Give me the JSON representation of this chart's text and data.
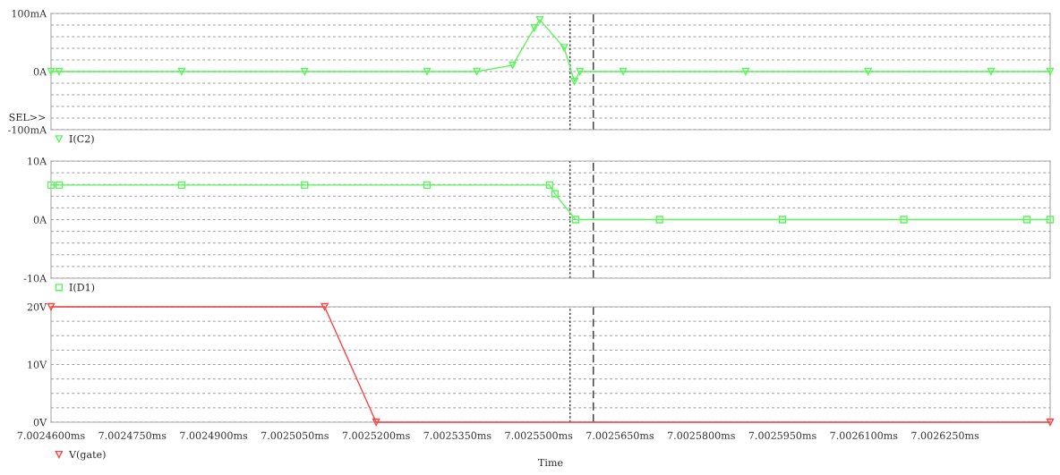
{
  "chart_data": [
    {
      "type": "line",
      "xlim": [
        7.00246,
        7.0026444
      ],
      "ylim": [
        -100,
        100
      ],
      "yticks": [
        {
          "value": -100,
          "label": "-100mA"
        },
        {
          "value": -80,
          "label": null
        },
        {
          "value": -60,
          "label": null
        },
        {
          "value": -40,
          "label": null
        },
        {
          "value": -20,
          "label": null
        },
        {
          "value": 0,
          "label": "0A"
        },
        {
          "value": 20,
          "label": null
        },
        {
          "value": 40,
          "label": null
        },
        {
          "value": 60,
          "label": null
        },
        {
          "value": 80,
          "label": null
        },
        {
          "value": 100,
          "label": "100mA"
        }
      ],
      "tick_labels": "y",
      "grid": "y",
      "legend": "bottom left",
      "marker": "triangle",
      "line_style": "solid",
      "annotations": [
        "SEL>>"
      ],
      "ref_lines": [
        {
          "axis": "x",
          "value": 7.0025558,
          "label": null,
          "color": "#000000",
          "line_style": "dotted"
        },
        {
          "axis": "x",
          "value": 7.0025601,
          "label": null,
          "color": "#000000",
          "line_style": "dashed"
        }
      ],
      "series": [
        {
          "name": "I(C2)",
          "color": "#5af55a",
          "x": [
            7.00246,
            7.0024615,
            7.0024841,
            7.0025068,
            7.0025294,
            7.0025386,
            7.0025452,
            7.0025492,
            7.0025502,
            7.0025547,
            7.0025566,
            7.0025576,
            7.0025656,
            7.0025882,
            7.0026108,
            7.0026335,
            7.0026444
          ],
          "values": [
            0,
            0,
            0,
            0,
            0,
            0,
            11,
            75,
            89,
            41,
            -17,
            0,
            0,
            0,
            0,
            0,
            0
          ]
        }
      ]
    },
    {
      "type": "line",
      "xlim": [
        7.00246,
        7.0026444
      ],
      "ylim": [
        -10,
        10
      ],
      "yticks": [
        {
          "value": -10,
          "label": "-10A"
        },
        {
          "value": -8,
          "label": null
        },
        {
          "value": -6,
          "label": null
        },
        {
          "value": -4,
          "label": null
        },
        {
          "value": -2,
          "label": null
        },
        {
          "value": 0,
          "label": "0A"
        },
        {
          "value": 2,
          "label": null
        },
        {
          "value": 4,
          "label": null
        },
        {
          "value": 6,
          "label": null
        },
        {
          "value": 8,
          "label": null
        },
        {
          "value": 10,
          "label": "10A"
        }
      ],
      "tick_labels": "y",
      "grid": "y",
      "legend": "bottom left",
      "marker": "square",
      "line_style": "solid",
      "ref_lines": [
        {
          "axis": "x",
          "value": 7.0025558,
          "label": null,
          "color": "#000000",
          "line_style": "dotted"
        },
        {
          "axis": "x",
          "value": 7.0025601,
          "label": null,
          "color": "#000000",
          "line_style": "dashed"
        }
      ],
      "series": [
        {
          "name": "I(D1)",
          "color": "#5af55a",
          "x": [
            7.00246,
            7.0024615,
            7.0024841,
            7.0025068,
            7.0025294,
            7.002552,
            7.002553,
            7.0025568,
            7.0025723,
            7.002595,
            7.0026174,
            7.0026401,
            7.0026444
          ],
          "values": [
            5.9,
            5.9,
            5.9,
            5.9,
            5.9,
            5.9,
            4.4,
            0,
            0,
            0,
            0,
            0,
            0
          ]
        }
      ]
    },
    {
      "type": "line",
      "xlim": [
        7.00246,
        7.0026444
      ],
      "ylim": [
        0,
        20
      ],
      "xticks": [
        {
          "value": 7.00246,
          "label": "7.0024600ms"
        },
        {
          "value": 7.002475,
          "label": "7.0024750ms"
        },
        {
          "value": 7.00249,
          "label": "7.0024900ms"
        },
        {
          "value": 7.002505,
          "label": "7.0025050ms"
        },
        {
          "value": 7.00252,
          "label": "7.0025200ms"
        },
        {
          "value": 7.002535,
          "label": "7.0025350ms"
        },
        {
          "value": 7.00255,
          "label": "7.0025500ms"
        },
        {
          "value": 7.002565,
          "label": "7.0025650ms"
        },
        {
          "value": 7.00258,
          "label": "7.0025800ms"
        },
        {
          "value": 7.002595,
          "label": "7.0025950ms"
        },
        {
          "value": 7.00261,
          "label": "7.0026100ms"
        },
        {
          "value": 7.002625,
          "label": "7.0026250ms"
        }
      ],
      "yticks": [
        {
          "value": 0,
          "label": "0V"
        },
        {
          "value": 2.5,
          "label": null
        },
        {
          "value": 5,
          "label": null
        },
        {
          "value": 7.5,
          "label": null
        },
        {
          "value": 10,
          "label": "10V"
        },
        {
          "value": 12.5,
          "label": null
        },
        {
          "value": 15,
          "label": null
        },
        {
          "value": 17.5,
          "label": null
        },
        {
          "value": 20,
          "label": "20V"
        }
      ],
      "xlabel": "Time",
      "grid": "y",
      "legend": "bottom left",
      "marker": "triangle",
      "line_style": "solid",
      "ref_lines": [
        {
          "axis": "x",
          "value": 7.0025558,
          "label": null,
          "color": "#000000",
          "line_style": "dotted"
        },
        {
          "axis": "x",
          "value": 7.0025601,
          "label": null,
          "color": "#000000",
          "line_style": "dashed"
        }
      ],
      "series": [
        {
          "name": "V(gate)",
          "color": "#ff4040",
          "x": [
            7.00246,
            7.0025105,
            7.00252,
            7.0026444
          ],
          "values": [
            20,
            20,
            0,
            0
          ]
        }
      ]
    }
  ]
}
